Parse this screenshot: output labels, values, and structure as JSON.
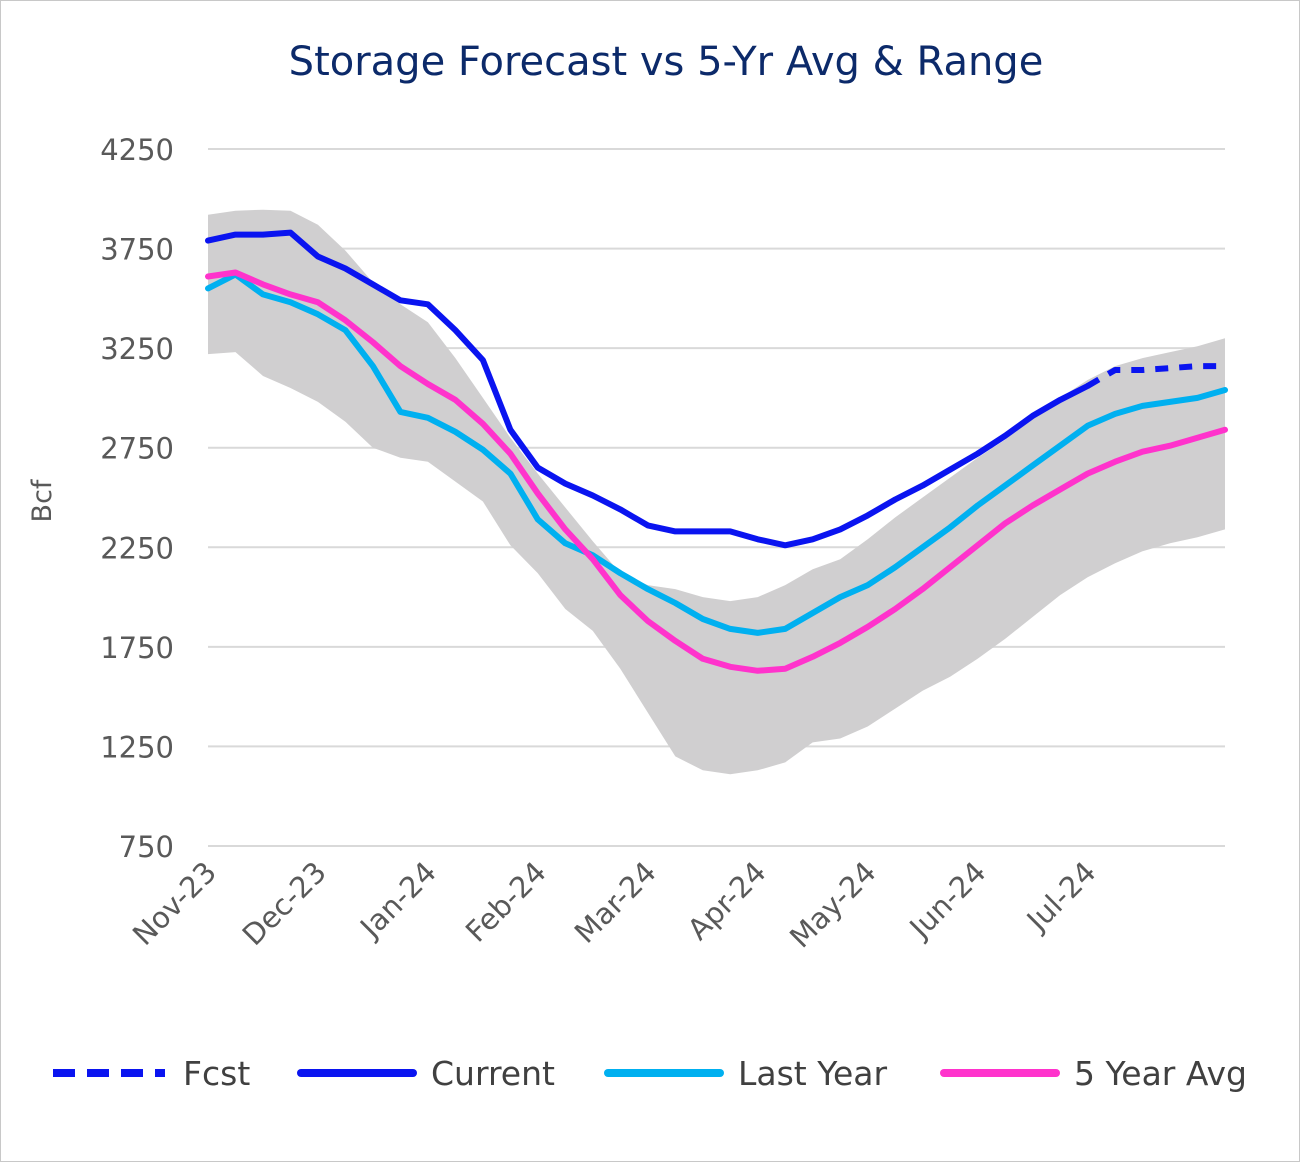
{
  "chart_data": {
    "type": "line",
    "title": "Storage Forecast vs 5-Yr Avg & Range",
    "xlabel": "",
    "ylabel": "Bcf",
    "ylim": [
      750,
      4250
    ],
    "yticks": [
      "4250",
      "3750",
      "3250",
      "2750",
      "2250",
      "1750",
      "1250",
      "750"
    ],
    "xticks": [
      "Nov-23",
      "Dec-23",
      "Jan-24",
      "Feb-24",
      "Mar-24",
      "Apr-24",
      "May-24",
      "Jun-24",
      "Jul-24"
    ],
    "grid": true,
    "legend_position": "bottom",
    "colors": {
      "fcst": "#0a14f0",
      "current": "#0a14f0",
      "last_year": "#00b0f0",
      "five_year_avg": "#ff33cc",
      "range": "#d0cfd0",
      "grid": "#d9d9d9"
    },
    "range_band": {
      "name": "5-Yr Range",
      "x": [
        0,
        0.25,
        0.5,
        0.75,
        1,
        1.25,
        1.5,
        1.75,
        2,
        2.25,
        2.5,
        2.75,
        3,
        3.25,
        3.5,
        3.75,
        4,
        4.25,
        4.5,
        4.75,
        5,
        5.25,
        5.5,
        5.75,
        6,
        6.25,
        6.5,
        6.75,
        7,
        7.25,
        7.5,
        7.75,
        8,
        8.25,
        8.5,
        8.75,
        9,
        9.25
      ],
      "upper": [
        3920,
        3940,
        3945,
        3940,
        3870,
        3740,
        3580,
        3470,
        3380,
        3200,
        3000,
        2800,
        2620,
        2450,
        2280,
        2120,
        2060,
        2040,
        2000,
        1980,
        2000,
        2060,
        2140,
        2190,
        2290,
        2400,
        2500,
        2600,
        2700,
        2790,
        2900,
        3000,
        3090,
        3160,
        3200,
        3230,
        3260,
        3300
      ],
      "lower": [
        3220,
        3230,
        3110,
        3050,
        2980,
        2880,
        2750,
        2700,
        2680,
        2580,
        2480,
        2260,
        2120,
        1940,
        1830,
        1640,
        1420,
        1200,
        1130,
        1110,
        1130,
        1170,
        1270,
        1290,
        1350,
        1440,
        1530,
        1600,
        1690,
        1790,
        1900,
        2010,
        2100,
        2170,
        2230,
        2270,
        2300,
        2340
      ]
    },
    "series": [
      {
        "name": "Current",
        "style": "solid",
        "x": [
          0,
          0.25,
          0.5,
          0.75,
          1,
          1.25,
          1.5,
          1.75,
          2,
          2.25,
          2.5,
          2.75,
          3,
          3.25,
          3.5,
          3.75,
          4,
          4.25,
          4.5,
          4.75,
          5,
          5.25,
          5.5,
          5.75,
          6,
          6.25,
          6.5,
          6.75,
          7,
          7.25,
          7.5,
          7.75,
          8
        ],
        "values": [
          3790,
          3820,
          3820,
          3830,
          3710,
          3650,
          3570,
          3490,
          3470,
          3340,
          3190,
          2840,
          2650,
          2570,
          2510,
          2440,
          2360,
          2330,
          2330,
          2330,
          2290,
          2260,
          2290,
          2340,
          2410,
          2490,
          2560,
          2640,
          2720,
          2810,
          2910,
          2990,
          3060
        ]
      },
      {
        "name": "Fcst",
        "style": "dashed",
        "x": [
          8.25,
          8.5,
          8.75,
          9,
          9.25
        ],
        "values": [
          3140,
          3140,
          3150,
          3160,
          3160
        ]
      },
      {
        "name": "Last Year",
        "style": "solid",
        "x": [
          0,
          0.25,
          0.5,
          0.75,
          1,
          1.25,
          1.5,
          1.75,
          2,
          2.25,
          2.5,
          2.75,
          3,
          3.25,
          3.5,
          3.75,
          4,
          4.25,
          4.5,
          4.75,
          5,
          5.25,
          5.5,
          5.75,
          6,
          6.25,
          6.5,
          6.75,
          7,
          7.25,
          7.5,
          7.75,
          8,
          8.25,
          8.5,
          8.75,
          9,
          9.25
        ],
        "values": [
          3550,
          3620,
          3520,
          3480,
          3420,
          3340,
          3160,
          2930,
          2900,
          2830,
          2740,
          2620,
          2390,
          2270,
          2210,
          2120,
          2040,
          1970,
          1890,
          1840,
          1820,
          1840,
          1920,
          2000,
          2060,
          2150,
          2250,
          2350,
          2460,
          2560,
          2660,
          2760,
          2860,
          2920,
          2960,
          2980,
          3000,
          3040
        ]
      },
      {
        "name": "5 Year Avg",
        "style": "solid",
        "x": [
          0,
          0.25,
          0.5,
          0.75,
          1,
          1.25,
          1.5,
          1.75,
          2,
          2.25,
          2.5,
          2.75,
          3,
          3.25,
          3.5,
          3.75,
          4,
          4.25,
          4.5,
          4.75,
          5,
          5.25,
          5.5,
          5.75,
          6,
          6.25,
          6.5,
          6.75,
          7,
          7.25,
          7.5,
          7.75,
          8,
          8.25,
          8.5,
          8.75,
          9,
          9.25
        ],
        "values": [
          3610,
          3630,
          3570,
          3520,
          3480,
          3390,
          3280,
          3160,
          3070,
          2990,
          2870,
          2720,
          2520,
          2340,
          2190,
          2010,
          1880,
          1780,
          1690,
          1650,
          1630,
          1640,
          1700,
          1770,
          1850,
          1940,
          2040,
          2150,
          2260,
          2370,
          2460,
          2540,
          2620,
          2680,
          2730,
          2760,
          2800,
          2840
        ]
      }
    ],
    "legend": [
      "Fcst",
      "Current",
      "Last Year",
      "5 Year Avg"
    ]
  }
}
